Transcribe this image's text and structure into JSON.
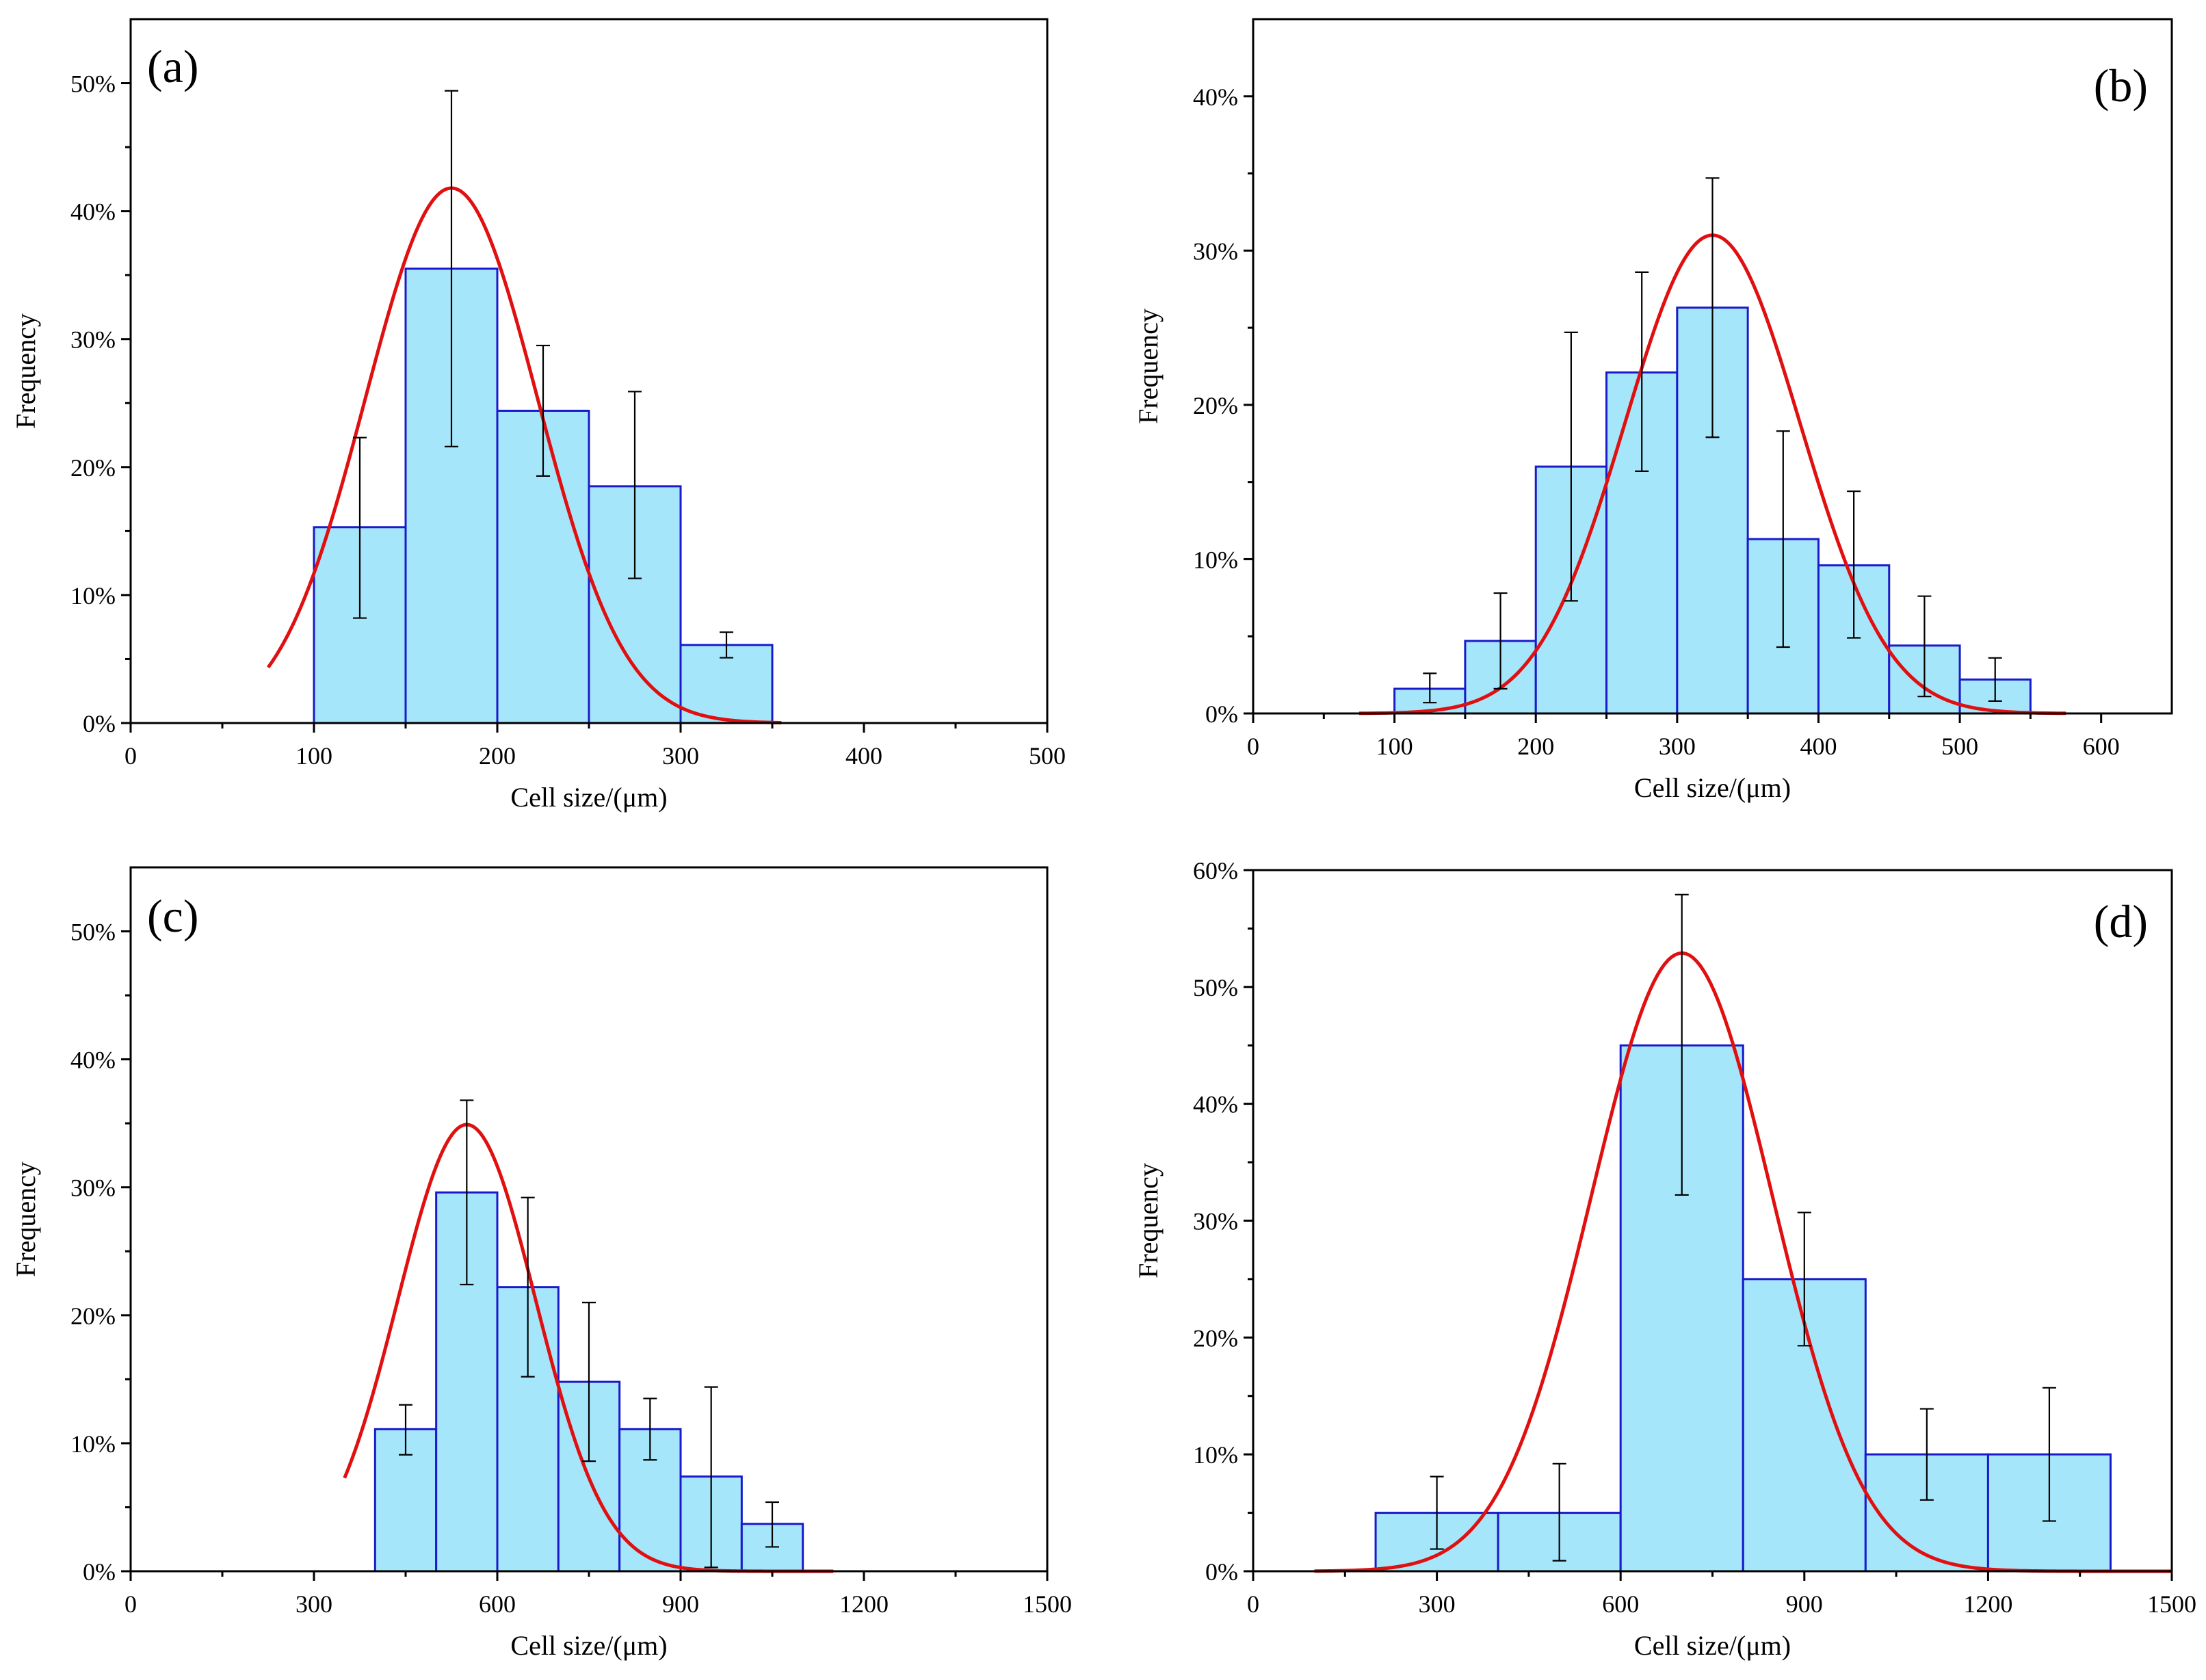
{
  "colors": {
    "bar_fill": "#a6e6fb",
    "bar_edge": "#1a1acc",
    "fit_curve": "#e01010",
    "axis": "#000000"
  },
  "chart_data": [
    {
      "panel": "(a)",
      "type": "bar",
      "xlabel": "Cell size/(μm)",
      "ylabel": "Frequency",
      "xlim": [
        0,
        500
      ],
      "ylim": [
        0,
        55
      ],
      "x_ticks": [
        0,
        100,
        200,
        300,
        400,
        500
      ],
      "y_ticks": [
        0,
        10,
        20,
        30,
        40,
        50
      ],
      "bins": [
        {
          "from": 100,
          "to": 150,
          "value": 15.3,
          "err_low": 8.2,
          "err_high": 22.3
        },
        {
          "from": 150,
          "to": 200,
          "value": 35.5,
          "err_low": 21.6,
          "err_high": 49.4
        },
        {
          "from": 200,
          "to": 250,
          "value": 24.4,
          "err_low": 19.3,
          "err_high": 29.5
        },
        {
          "from": 250,
          "to": 300,
          "value": 18.5,
          "err_low": 11.3,
          "err_high": 25.9
        },
        {
          "from": 300,
          "to": 350,
          "value": 6.1,
          "err_low": 5.1,
          "err_high": 7.1
        }
      ],
      "fit": {
        "mean": 175,
        "sigma": 47,
        "peak": 41.8,
        "x_range": [
          75,
          355
        ]
      }
    },
    {
      "panel": "(b)",
      "type": "bar",
      "xlabel": "Cell size/(μm)",
      "ylabel": "Frequency",
      "xlim": [
        0,
        650
      ],
      "ylim": [
        0,
        45
      ],
      "x_ticks": [
        0,
        100,
        200,
        300,
        400,
        500,
        600
      ],
      "y_ticks": [
        0,
        10,
        20,
        30,
        40
      ],
      "bins": [
        {
          "from": 100,
          "to": 150,
          "value": 1.6,
          "err_low": 0.7,
          "err_high": 2.6
        },
        {
          "from": 150,
          "to": 200,
          "value": 4.7,
          "err_low": 1.6,
          "err_high": 7.8
        },
        {
          "from": 200,
          "to": 250,
          "value": 16.0,
          "err_low": 7.3,
          "err_high": 24.7
        },
        {
          "from": 250,
          "to": 300,
          "value": 22.1,
          "err_low": 15.7,
          "err_high": 28.6
        },
        {
          "from": 300,
          "to": 350,
          "value": 26.3,
          "err_low": 17.9,
          "err_high": 34.7
        },
        {
          "from": 350,
          "to": 400,
          "value": 11.3,
          "err_low": 4.3,
          "err_high": 18.3
        },
        {
          "from": 400,
          "to": 450,
          "value": 9.6,
          "err_low": 4.9,
          "err_high": 14.4
        },
        {
          "from": 450,
          "to": 500,
          "value": 4.4,
          "err_low": 1.1,
          "err_high": 7.6
        },
        {
          "from": 500,
          "to": 550,
          "value": 2.2,
          "err_low": 0.8,
          "err_high": 3.6
        }
      ],
      "fit": {
        "mean": 325,
        "sigma": 62,
        "peak": 31.0,
        "x_range": [
          75,
          575
        ]
      }
    },
    {
      "panel": "(c)",
      "type": "bar",
      "xlabel": "Cell size/(μm)",
      "ylabel": "Frequency",
      "xlim": [
        0,
        1500
      ],
      "ylim": [
        0,
        55
      ],
      "x_ticks": [
        0,
        300,
        600,
        900,
        1200,
        1500
      ],
      "y_ticks": [
        0,
        10,
        20,
        30,
        40,
        50
      ],
      "bins": [
        {
          "from": 400,
          "to": 500,
          "value": 11.1,
          "err_low": 9.1,
          "err_high": 13.0
        },
        {
          "from": 500,
          "to": 600,
          "value": 29.6,
          "err_low": 22.4,
          "err_high": 36.8
        },
        {
          "from": 600,
          "to": 700,
          "value": 22.2,
          "err_low": 15.2,
          "err_high": 29.2
        },
        {
          "from": 700,
          "to": 800,
          "value": 14.8,
          "err_low": 8.6,
          "err_high": 21.0
        },
        {
          "from": 800,
          "to": 900,
          "value": 11.1,
          "err_low": 8.7,
          "err_high": 13.5
        },
        {
          "from": 900,
          "to": 1000,
          "value": 7.4,
          "err_low": 0.3,
          "err_high": 14.4
        },
        {
          "from": 1000,
          "to": 1100,
          "value": 3.7,
          "err_low": 1.9,
          "err_high": 5.4
        }
      ],
      "fit": {
        "mean": 550,
        "sigma": 113,
        "peak": 34.9,
        "x_range": [
          350,
          1150
        ]
      }
    },
    {
      "panel": "(d)",
      "type": "bar",
      "xlabel": "Cell size/(μm)",
      "ylabel": "Frequency",
      "xlim": [
        0,
        1500
      ],
      "ylim": [
        0,
        60
      ],
      "x_ticks": [
        0,
        300,
        600,
        900,
        1200,
        1500
      ],
      "y_ticks": [
        0,
        10,
        20,
        30,
        40,
        50,
        60
      ],
      "bins": [
        {
          "from": 200,
          "to": 400,
          "value": 5.0,
          "err_low": 1.9,
          "err_high": 8.1
        },
        {
          "from": 400,
          "to": 600,
          "value": 5.0,
          "err_low": 0.9,
          "err_high": 9.2
        },
        {
          "from": 600,
          "to": 800,
          "value": 45.0,
          "err_low": 32.2,
          "err_high": 57.9
        },
        {
          "from": 800,
          "to": 1000,
          "value": 25.0,
          "err_low": 19.3,
          "err_high": 30.7
        },
        {
          "from": 1000,
          "to": 1200,
          "value": 10.0,
          "err_low": 6.1,
          "err_high": 13.9
        },
        {
          "from": 1200,
          "to": 1400,
          "value": 10.0,
          "err_low": 4.3,
          "err_high": 15.7
        }
      ],
      "fit": {
        "mean": 700,
        "sigma": 148,
        "peak": 52.9,
        "x_range": [
          100,
          1500
        ]
      }
    }
  ]
}
